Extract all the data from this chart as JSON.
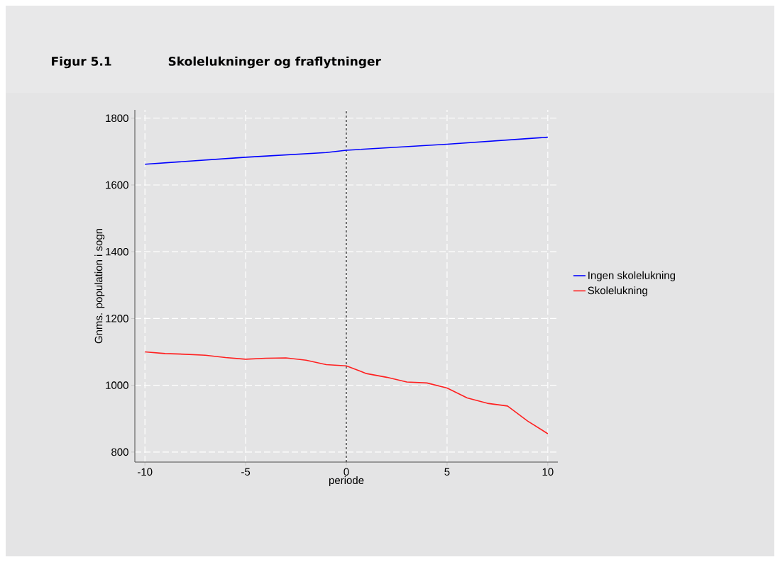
{
  "chart_data": {
    "type": "line",
    "title": "Figur 5.1",
    "subtitle": "Skolelukninger og fraflytninger",
    "xlabel": "periode",
    "ylabel": "Gnms. population i sogn",
    "series": [
      {
        "name": "Ingen skolelukning",
        "color": "#0000ff",
        "x": [
          -10,
          -5,
          -1,
          0,
          5,
          10
        ],
        "values": [
          1662,
          1683,
          1697,
          1704,
          1722,
          1743
        ]
      },
      {
        "name": "Skolelukning",
        "color": "#ff2020",
        "x": [
          -10,
          -9,
          -8,
          -7,
          -6,
          -5,
          -4,
          -3,
          -2,
          -1,
          0,
          1,
          2,
          3,
          4,
          5,
          6,
          7,
          8,
          9,
          10
        ],
        "values": [
          1100,
          1095,
          1093,
          1090,
          1083,
          1078,
          1081,
          1082,
          1075,
          1062,
          1058,
          1035,
          1024,
          1010,
          1007,
          992,
          962,
          946,
          938,
          893,
          855
        ]
      }
    ],
    "xlim": [
      -10.5,
      10.5
    ],
    "ylim": [
      770,
      1825
    ],
    "xticks": [
      -10,
      -5,
      0,
      5,
      10
    ],
    "yticks": [
      800,
      1000,
      1200,
      1400,
      1600,
      1800
    ],
    "ref_lines": [
      {
        "axis": "x",
        "value": 0,
        "color": "#333333",
        "line_style": "dashed"
      }
    ],
    "grid": true,
    "legend": "right",
    "marker": "none",
    "line_style": "solid"
  }
}
